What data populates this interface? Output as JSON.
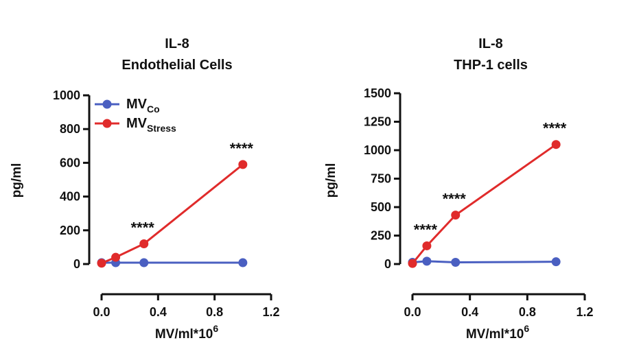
{
  "chart_data": [
    {
      "type": "line",
      "title": [
        "IL-8",
        "Endothelial Cells"
      ],
      "xlabel": {
        "main": "MV/ml*10",
        "sup": "6"
      },
      "ylabel": "pg/ml",
      "xlim": [
        0,
        1.2
      ],
      "ylim": [
        0,
        1000
      ],
      "xticks": [
        "0.0",
        "0.4",
        "0.8",
        "1.2"
      ],
      "xtick_values": [
        0,
        0.4,
        0.8,
        1.2
      ],
      "yticks": [
        "0",
        "200",
        "400",
        "600",
        "800",
        "1000"
      ],
      "ytick_values": [
        0,
        200,
        400,
        600,
        800,
        1000
      ],
      "legend": {
        "position": "top-left"
      },
      "series": [
        {
          "name": "MV",
          "name_sub": "Co",
          "color": "#4a5fc1",
          "x": [
            0,
            0.1,
            0.3,
            1.0
          ],
          "y": [
            8,
            8,
            8,
            8
          ]
        },
        {
          "name": "MV",
          "name_sub": "Stress",
          "color": "#e02b2b",
          "x": [
            0,
            0.1,
            0.3,
            1.0
          ],
          "y": [
            5,
            40,
            120,
            590
          ]
        }
      ],
      "annotations": [
        {
          "text": "****",
          "x": 0.3,
          "y": 120
        },
        {
          "text": "****",
          "x": 1.0,
          "y": 590
        }
      ]
    },
    {
      "type": "line",
      "title": [
        "IL-8",
        "THP-1 cells"
      ],
      "xlabel": {
        "main": "MV/ml*10",
        "sup": "6"
      },
      "ylabel": "pg/ml",
      "xlim": [
        0,
        1.2
      ],
      "ylim": [
        0,
        1500
      ],
      "xticks": [
        "0.0",
        "0.4",
        "0.8",
        "1.2"
      ],
      "xtick_values": [
        0,
        0.4,
        0.8,
        1.2
      ],
      "yticks": [
        "0",
        "250",
        "500",
        "750",
        "1000",
        "1250",
        "1500"
      ],
      "ytick_values": [
        0,
        250,
        500,
        750,
        1000,
        1250,
        1500
      ],
      "series": [
        {
          "name": "MV",
          "name_sub": "Co",
          "color": "#4a5fc1",
          "x": [
            0,
            0.1,
            0.3,
            1.0
          ],
          "y": [
            15,
            25,
            15,
            20
          ]
        },
        {
          "name": "MV",
          "name_sub": "Stress",
          "color": "#e02b2b",
          "x": [
            0,
            0.1,
            0.3,
            1.0
          ],
          "y": [
            5,
            160,
            430,
            1050
          ]
        }
      ],
      "annotations": [
        {
          "text": "****",
          "x": 0.1,
          "y": 160
        },
        {
          "text": "****",
          "x": 0.3,
          "y": 430
        },
        {
          "text": "****",
          "x": 1.0,
          "y": 1050
        }
      ]
    }
  ]
}
